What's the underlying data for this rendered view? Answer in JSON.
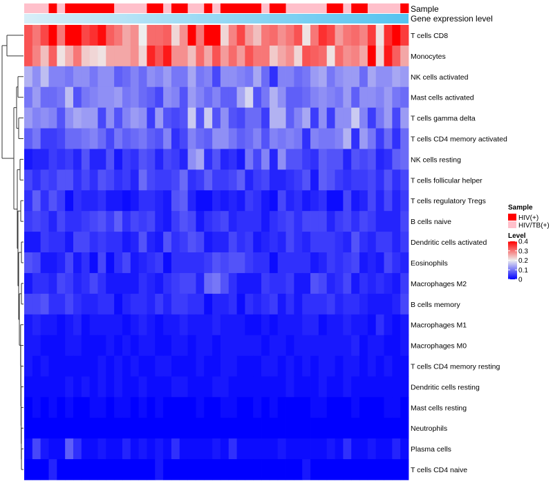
{
  "chart_data": {
    "type": "heatmap",
    "annotations": {
      "sample_label": "Sample",
      "gene_label": "Gene expression level",
      "sample_groups": [
        "HIV/TB(+)",
        "HIV/TB(+)",
        "HIV/TB(+)",
        "HIV(+)",
        "HIV/TB(+)",
        "HIV(+)",
        "HIV(+)",
        "HIV(+)",
        "HIV(+)",
        "HIV(+)",
        "HIV(+)",
        "HIV/TB(+)",
        "HIV/TB(+)",
        "HIV/TB(+)",
        "HIV/TB(+)",
        "HIV(+)",
        "HIV(+)",
        "HIV/TB(+)",
        "HIV(+)",
        "HIV(+)",
        "HIV/TB(+)",
        "HIV/TB(+)",
        "HIV(+)",
        "HIV/TB(+)",
        "HIV(+)",
        "HIV(+)",
        "HIV(+)",
        "HIV(+)",
        "HIV(+)",
        "HIV/TB(+)",
        "HIV(+)",
        "HIV(+)",
        "HIV/TB(+)",
        "HIV/TB(+)",
        "HIV/TB(+)",
        "HIV/TB(+)",
        "HIV/TB(+)",
        "HIV(+)",
        "HIV(+)",
        "HIV/TB(+)",
        "HIV(+)",
        "HIV(+)",
        "HIV/TB(+)",
        "HIV/TB(+)",
        "HIV/TB(+)",
        "HIV/TB(+)",
        "HIV(+)"
      ],
      "gene_level_range": [
        0,
        1
      ]
    },
    "rows": [
      "T cells CD8",
      "Monocytes",
      "NK cells activated",
      "Mast cells activated",
      "T cells gamma delta",
      "T cells CD4 memory activated",
      "NK cells resting",
      "T cells follicular helper",
      "T cells regulatory  Tregs",
      "B cells naive",
      "Dendritic cells activated",
      "Eosinophils",
      "Macrophages M2",
      "B cells memory",
      "Macrophages M1",
      "Macrophages M0",
      "T cells CD4 memory resting",
      "Dendritic cells resting",
      "Mast cells resting",
      "Neutrophils",
      "Plasma cells",
      "T cells CD4 naive"
    ],
    "values": [
      [
        0.33,
        0.3,
        0.34,
        0.4,
        0.3,
        0.4,
        0.4,
        0.34,
        0.36,
        0.39,
        0.32,
        0.3,
        0.26,
        0.28,
        0.2,
        0.31,
        0.31,
        0.32,
        0.22,
        0.28,
        0.41,
        0.3,
        0.4,
        0.4,
        0.22,
        0.29,
        0.34,
        0.27,
        0.24,
        0.3,
        0.31,
        0.28,
        0.3,
        0.33,
        0.21,
        0.3,
        0.36,
        0.34,
        0.27,
        0.3,
        0.31,
        0.29,
        0.35,
        0.21,
        0.36,
        0.4,
        0.35
      ],
      [
        0.33,
        0.29,
        0.24,
        0.32,
        0.21,
        0.25,
        0.3,
        0.23,
        0.22,
        0.21,
        0.26,
        0.26,
        0.26,
        0.28,
        0.22,
        0.37,
        0.33,
        0.38,
        0.28,
        0.28,
        0.24,
        0.31,
        0.26,
        0.33,
        0.27,
        0.31,
        0.27,
        0.33,
        0.3,
        0.3,
        0.23,
        0.26,
        0.28,
        0.22,
        0.33,
        0.32,
        0.31,
        0.21,
        0.31,
        0.28,
        0.29,
        0.26,
        0.4,
        0.22,
        0.38,
        0.32,
        0.26
      ],
      [
        0.15,
        0.12,
        0.16,
        0.11,
        0.11,
        0.1,
        0.12,
        0.12,
        0.1,
        0.12,
        0.12,
        0.08,
        0.09,
        0.11,
        0.09,
        0.12,
        0.11,
        0.13,
        0.1,
        0.1,
        0.14,
        0.1,
        0.11,
        0.06,
        0.12,
        0.12,
        0.11,
        0.1,
        0.14,
        0.09,
        0.04,
        0.11,
        0.11,
        0.09,
        0.1,
        0.13,
        0.14,
        0.1,
        0.12,
        0.13,
        0.13,
        0.09,
        0.14,
        0.12,
        0.12,
        0.14,
        0.13
      ],
      [
        0.1,
        0.13,
        0.09,
        0.09,
        0.1,
        0.16,
        0.07,
        0.1,
        0.11,
        0.12,
        0.12,
        0.13,
        0.1,
        0.11,
        0.09,
        0.08,
        0.06,
        0.12,
        0.11,
        0.07,
        0.13,
        0.11,
        0.09,
        0.11,
        0.08,
        0.08,
        0.14,
        0.18,
        0.07,
        0.1,
        0.15,
        0.12,
        0.08,
        0.08,
        0.09,
        0.11,
        0.12,
        0.11,
        0.1,
        0.13,
        0.08,
        0.12,
        0.12,
        0.11,
        0.13,
        0.1,
        0.09
      ],
      [
        0.13,
        0.11,
        0.12,
        0.11,
        0.07,
        0.12,
        0.14,
        0.13,
        0.13,
        0.06,
        0.12,
        0.07,
        0.11,
        0.13,
        0.12,
        0.05,
        0.13,
        0.07,
        0.06,
        0.07,
        0.17,
        0.07,
        0.17,
        0.07,
        0.12,
        0.07,
        0.06,
        0.09,
        0.09,
        0.05,
        0.15,
        0.15,
        0.08,
        0.11,
        0.14,
        0.05,
        0.12,
        0.05,
        0.12,
        0.12,
        0.17,
        0.11,
        0.05,
        0.1,
        0.13,
        0.06,
        0.13
      ],
      [
        0.08,
        0.1,
        0.05,
        0.05,
        0.06,
        0.09,
        0.09,
        0.1,
        0.11,
        0.09,
        0.06,
        0.1,
        0.08,
        0.09,
        0.1,
        0.08,
        0.07,
        0.11,
        0.04,
        0.06,
        0.11,
        0.09,
        0.08,
        0.12,
        0.12,
        0.1,
        0.08,
        0.09,
        0.11,
        0.07,
        0.11,
        0.1,
        0.11,
        0.1,
        0.04,
        0.11,
        0.1,
        0.1,
        0.11,
        0.15,
        0.04,
        0.13,
        0.1,
        0.05,
        0.09,
        0.04,
        0.09
      ],
      [
        0.02,
        0.03,
        0.03,
        0.05,
        0.04,
        0.05,
        0.03,
        0.07,
        0.03,
        0.03,
        0.07,
        0.02,
        0.05,
        0.04,
        0.07,
        0.06,
        0.03,
        0.06,
        0.05,
        0.03,
        0.12,
        0.14,
        0.04,
        0.07,
        0.03,
        0.04,
        0.02,
        0.1,
        0.06,
        0.11,
        0.03,
        0.12,
        0.07,
        0.07,
        0.05,
        0.04,
        0.08,
        0.07,
        0.07,
        0.03,
        0.07,
        0.06,
        0.07,
        0.03,
        0.04,
        0.08,
        0.09
      ],
      [
        0.06,
        0.04,
        0.06,
        0.05,
        0.07,
        0.07,
        0.04,
        0.06,
        0.04,
        0.07,
        0.06,
        0.04,
        0.05,
        0.03,
        0.09,
        0.06,
        0.05,
        0.05,
        0.06,
        0.09,
        0.04,
        0.05,
        0.08,
        0.05,
        0.05,
        0.06,
        0.08,
        0.03,
        0.05,
        0.06,
        0.03,
        0.03,
        0.04,
        0.05,
        0.07,
        0.02,
        0.08,
        0.07,
        0.05,
        0.04,
        0.05,
        0.05,
        0.06,
        0.04,
        0.07,
        0.04,
        0.06
      ],
      [
        0.04,
        0.08,
        0.04,
        0.07,
        0.05,
        0.01,
        0.04,
        0.03,
        0.03,
        0.04,
        0.02,
        0.02,
        0.01,
        0.02,
        0.04,
        0.04,
        0.03,
        0.02,
        0.07,
        0.08,
        0.03,
        0.01,
        0.01,
        0.03,
        0.02,
        0.03,
        0.02,
        0.05,
        0.04,
        0.02,
        0.01,
        0.06,
        0.03,
        0.04,
        0.02,
        0.03,
        0.04,
        0.01,
        0.01,
        0.06,
        0.02,
        0.03,
        0.06,
        0.03,
        0.06,
        0.03,
        0.05
      ],
      [
        0.05,
        0.06,
        0.05,
        0.03,
        0.06,
        0.04,
        0.04,
        0.05,
        0.06,
        0.07,
        0.05,
        0.08,
        0.04,
        0.06,
        0.05,
        0.06,
        0.03,
        0.02,
        0.05,
        0.07,
        0.06,
        0.02,
        0.04,
        0.05,
        0.06,
        0.03,
        0.04,
        0.04,
        0.04,
        0.02,
        0.04,
        0.05,
        0.06,
        0.04,
        0.06,
        0.06,
        0.06,
        0.03,
        0.05,
        0.06,
        0.04,
        0.06,
        0.05,
        0.03,
        0.03,
        0.03,
        0.06
      ],
      [
        0.02,
        0.02,
        0.05,
        0.04,
        0.04,
        0.02,
        0.06,
        0.06,
        0.04,
        0.05,
        0.04,
        0.04,
        0.02,
        0.03,
        0.07,
        0.03,
        0.02,
        0.07,
        0.04,
        0.05,
        0.07,
        0.06,
        0.02,
        0.03,
        0.03,
        0.06,
        0.04,
        0.05,
        0.02,
        0.03,
        0.04,
        0.03,
        0.06,
        0.04,
        0.03,
        0.05,
        0.05,
        0.05,
        0.04,
        0.03,
        0.07,
        0.04,
        0.03,
        0.05,
        0.05,
        0.03,
        0.05
      ],
      [
        0.07,
        0.06,
        0.02,
        0.02,
        0.03,
        0.06,
        0.02,
        0.04,
        0.01,
        0.06,
        0.01,
        0.04,
        0.06,
        0.02,
        0.03,
        0.04,
        0.05,
        0.01,
        0.04,
        0.04,
        0.04,
        0.04,
        0.05,
        0.07,
        0.06,
        0.07,
        0.07,
        0.05,
        0.04,
        0.04,
        0.01,
        0.04,
        0.04,
        0.04,
        0.04,
        0.02,
        0.03,
        0.05,
        0.04,
        0.05,
        0.06,
        0.02,
        0.03,
        0.02,
        0.06,
        0.04,
        0.03
      ],
      [
        0.02,
        0.04,
        0.04,
        0.03,
        0.06,
        0.05,
        0.03,
        0.04,
        0.06,
        0.04,
        0.02,
        0.02,
        0.02,
        0.02,
        0.04,
        0.03,
        0.02,
        0.04,
        0.05,
        0.06,
        0.06,
        0.03,
        0.09,
        0.1,
        0.07,
        0.04,
        0.02,
        0.02,
        0.02,
        0.05,
        0.04,
        0.04,
        0.05,
        0.02,
        0.02,
        0.07,
        0.06,
        0.03,
        0.04,
        0.06,
        0.02,
        0.04,
        0.03,
        0.04,
        0.03,
        0.02,
        0.05
      ],
      [
        0.06,
        0.06,
        0.07,
        0.04,
        0.04,
        0.06,
        0.04,
        0.03,
        0.03,
        0.04,
        0.04,
        0.01,
        0.03,
        0.04,
        0.04,
        0.03,
        0.05,
        0.03,
        0.05,
        0.05,
        0.04,
        0.04,
        0.01,
        0.03,
        0.03,
        0.04,
        0.01,
        0.04,
        0.03,
        0.04,
        0.05,
        0.02,
        0.04,
        0.02,
        0.04,
        0.04,
        0.04,
        0.05,
        0.03,
        0.04,
        0.04,
        0.03,
        0.02,
        0.02,
        0.02,
        0.03,
        0.06
      ],
      [
        0.02,
        0.03,
        0.02,
        0.02,
        0.01,
        0.02,
        0.03,
        0.01,
        0.02,
        0.02,
        0.02,
        0.02,
        0.01,
        0.02,
        0.03,
        0.02,
        0.01,
        0.02,
        0.02,
        0.03,
        0.02,
        0.02,
        0.02,
        0.03,
        0.02,
        0.02,
        0.02,
        0.01,
        0.01,
        0.02,
        0.01,
        0.02,
        0.02,
        0.02,
        0.03,
        0.03,
        0.01,
        0.02,
        0.02,
        0.03,
        0.02,
        0.02,
        0.01,
        0.04,
        0.02,
        0.01,
        0.02
      ],
      [
        0.02,
        0.02,
        0.01,
        0.01,
        0.01,
        0.02,
        0.02,
        0.01,
        0.01,
        0.01,
        0.02,
        0.01,
        0.02,
        0.01,
        0.02,
        0.02,
        0.01,
        0.01,
        0.02,
        0.02,
        0.01,
        0.02,
        0.02,
        0.01,
        0.02,
        0.02,
        0.02,
        0.02,
        0.02,
        0.01,
        0.02,
        0.02,
        0.01,
        0.02,
        0.02,
        0.02,
        0.02,
        0.02,
        0.02,
        0.02,
        0.03,
        0.01,
        0.02,
        0.02,
        0.01,
        0.01,
        0.02
      ],
      [
        0.02,
        0.01,
        0.02,
        0.01,
        0.01,
        0.01,
        0.01,
        0.01,
        0.01,
        0.02,
        0.01,
        0.02,
        0.01,
        0.02,
        0.01,
        0.01,
        0.02,
        0.02,
        0.01,
        0.01,
        0.01,
        0.02,
        0.01,
        0.01,
        0.02,
        0.02,
        0.01,
        0.01,
        0.01,
        0.02,
        0.02,
        0.01,
        0.02,
        0.01,
        0.02,
        0.01,
        0.02,
        0.02,
        0.01,
        0.02,
        0.02,
        0.01,
        0.02,
        0.01,
        0.02,
        0.01,
        0.01
      ],
      [
        0.01,
        0.01,
        0.01,
        0.01,
        0.01,
        0.02,
        0.01,
        0.02,
        0.01,
        0.02,
        0.01,
        0.02,
        0.01,
        0.01,
        0.02,
        0.01,
        0.01,
        0.01,
        0.02,
        0.02,
        0.01,
        0.01,
        0.01,
        0.02,
        0.02,
        0.01,
        0.01,
        0.01,
        0.01,
        0.01,
        0.01,
        0.01,
        0.02,
        0.01,
        0.01,
        0.01,
        0.02,
        0.01,
        0.01,
        0.02,
        0.01,
        0.01,
        0.01,
        0.01,
        0.01,
        0.01,
        0.01
      ],
      [
        0.0,
        0.01,
        0.0,
        0.01,
        0.0,
        0.01,
        0.0,
        0.0,
        0.01,
        0.01,
        0.0,
        0.01,
        0.01,
        0.0,
        0.01,
        0.0,
        0.01,
        0.0,
        0.0,
        0.0,
        0.0,
        0.01,
        0.0,
        0.0,
        0.01,
        0.01,
        0.0,
        0.0,
        0.01,
        0.0,
        0.01,
        0.0,
        0.0,
        0.0,
        0.0,
        0.01,
        0.01,
        0.0,
        0.0,
        0.0,
        0.01,
        0.0,
        0.0,
        0.0,
        0.01,
        0.01,
        0.0
      ],
      [
        0.0,
        0.0,
        0.0,
        0.0,
        0.0,
        0.0,
        0.0,
        0.0,
        0.0,
        0.0,
        0.0,
        0.0,
        0.0,
        0.0,
        0.0,
        0.0,
        0.0,
        0.0,
        0.0,
        0.0,
        0.0,
        0.0,
        0.0,
        0.0,
        0.0,
        0.0,
        0.0,
        0.0,
        0.0,
        0.0,
        0.0,
        0.0,
        0.0,
        0.0,
        0.0,
        0.0,
        0.0,
        0.0,
        0.0,
        0.0,
        0.0,
        0.0,
        0.0,
        0.0,
        0.0,
        0.0,
        0.0
      ],
      [
        0.01,
        0.06,
        0.02,
        0.01,
        0.01,
        0.08,
        0.04,
        0.01,
        0.01,
        0.02,
        0.01,
        0.01,
        0.03,
        0.01,
        0.02,
        0.01,
        0.02,
        0.01,
        0.04,
        0.01,
        0.01,
        0.01,
        0.01,
        0.02,
        0.01,
        0.04,
        0.01,
        0.01,
        0.01,
        0.01,
        0.01,
        0.02,
        0.01,
        0.01,
        0.01,
        0.01,
        0.01,
        0.02,
        0.01,
        0.04,
        0.01,
        0.01,
        0.02,
        0.01,
        0.01,
        0.03,
        0.01
      ],
      [
        0.0,
        0.0,
        0.0,
        0.03,
        0.0,
        0.0,
        0.0,
        0.0,
        0.0,
        0.0,
        0.0,
        0.0,
        0.0,
        0.0,
        0.0,
        0.0,
        0.02,
        0.0,
        0.0,
        0.0,
        0.0,
        0.0,
        0.0,
        0.0,
        0.0,
        0.0,
        0.0,
        0.0,
        0.0,
        0.0,
        0.0,
        0.0,
        0.0,
        0.0,
        0.02,
        0.0,
        0.0,
        0.0,
        0.0,
        0.0,
        0.0,
        0.0,
        0.0,
        0.0,
        0.0,
        0.0,
        0.0
      ]
    ],
    "color_scale": {
      "low": "#0000ff",
      "mid": "#eeeeee",
      "high": "#ff0000",
      "mid_value": 0.2,
      "high_value": 0.4
    },
    "legend": {
      "sample_title": "Sample",
      "sample_entries": [
        {
          "label": "HIV(+)",
          "color": "#ff0000"
        },
        {
          "label": "HIV/TB(+)",
          "color": "#ffc0cb"
        }
      ],
      "level_title": "Level",
      "level_ticks": [
        "0.4",
        "0.3",
        "0.2",
        "0.1",
        "0"
      ],
      "level_tick_values": [
        0.4,
        0.3,
        0.2,
        0.1,
        0
      ]
    },
    "gene_gradient": {
      "from": "#d8eef8",
      "to": "#55c3f0"
    }
  }
}
